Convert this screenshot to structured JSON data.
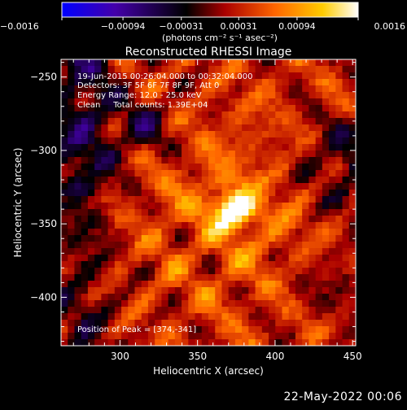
{
  "chart_data": {
    "type": "heatmap",
    "title": "Reconstructed RHESSI Image",
    "xlabel": "Heliocentric X (arcsec)",
    "ylabel": "Heliocentric Y (arcsec)",
    "xlim": [
      262,
      452
    ],
    "ylim": [
      -433,
      -238
    ],
    "x_ticks": [
      300,
      350,
      400,
      450
    ],
    "y_ticks": [
      -250,
      -300,
      -350,
      -400
    ],
    "colorbar": {
      "range": [
        -0.0016,
        0.0016
      ],
      "ticks": [
        -0.0016,
        -0.00094,
        -0.00031,
        0.00031,
        0.00094,
        0.0016
      ],
      "tick_labels": [
        "-0.0016",
        "-0.00094",
        "-0.00031",
        "0.00031",
        "0.00094",
        "0.0016"
      ],
      "unit_label": "(photons cm⁻² s⁻¹ asec⁻²)",
      "colors": [
        "#0000ff",
        "#4400aa",
        "#000000",
        "#aa0000",
        "#ff6600",
        "#ffcc00",
        "#ffffff"
      ]
    },
    "annotations": [
      "19-Jun-2015 00:26:04.000 to 00:32:04.000",
      "Detectors: 3F 5F 6F 7F 8F 9F, Att 0",
      "Energy Range: 12.0 - 25.0 keV",
      "Clean     Total counts: 1.39E+04"
    ],
    "peak_label": "Position of Peak = [374,-341]",
    "peak": [
      374,
      -341
    ]
  },
  "footer": {
    "date": "22-May-2022 00:06"
  }
}
